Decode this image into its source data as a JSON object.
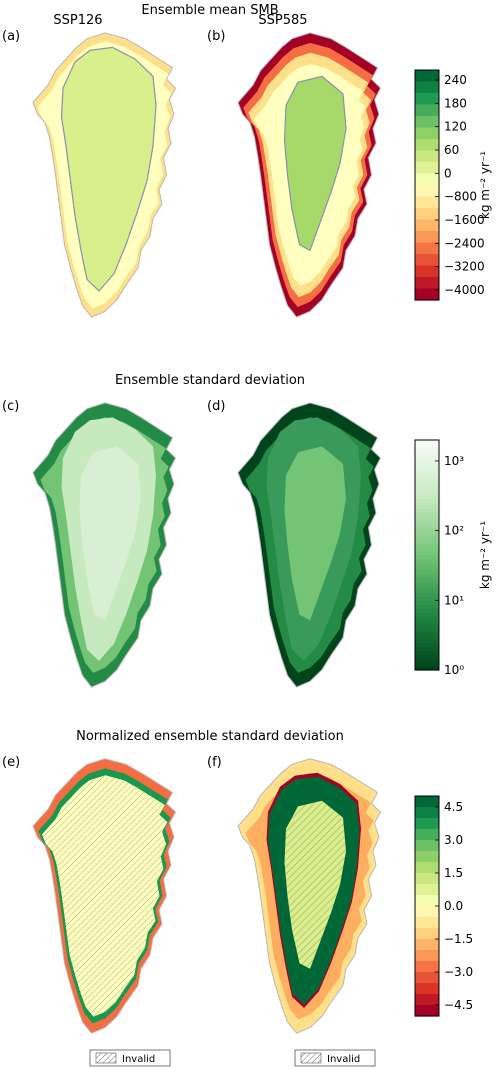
{
  "chart_data": [
    {
      "type": "heatmap",
      "title": "Ensemble mean SMB",
      "panels": [
        {
          "label": "(a)",
          "scenario": "SSP126",
          "pattern": "mild"
        },
        {
          "label": "(b)",
          "scenario": "SSP585",
          "pattern": "strong"
        }
      ],
      "colorbar": {
        "label": "kg m⁻² yr⁻¹",
        "scale": "symmetric-split",
        "ticks": [
          240,
          180,
          120,
          60,
          0,
          -800,
          -1600,
          -2400,
          -3200,
          -4000
        ],
        "tick_labels": [
          "240",
          "180",
          "120",
          "60",
          "0",
          "−800",
          "−1600",
          "−2400",
          "−3200",
          "−4000"
        ],
        "levels": 20,
        "colors": [
          "#006837",
          "#1a9850",
          "#66bd63",
          "#a6d96a",
          "#d9ef8b",
          "#ffffbf",
          "#fee08b",
          "#fdae61",
          "#f46d43",
          "#d73027",
          "#a50026"
        ]
      }
    },
    {
      "type": "heatmap",
      "title": "Ensemble standard deviation",
      "panels": [
        {
          "label": "(c)",
          "pattern": "std-low"
        },
        {
          "label": "(d)",
          "pattern": "std-high"
        }
      ],
      "colorbar": {
        "label": "kg m⁻² yr⁻¹",
        "scale": "log",
        "range": [
          1,
          2000
        ],
        "tick_labels": [
          "10³",
          "10²",
          "10¹",
          "10⁰"
        ],
        "colors": [
          "#f7fcf5",
          "#c7e9c0",
          "#74c476",
          "#238b45",
          "#00441b"
        ]
      }
    },
    {
      "type": "heatmap",
      "title": "Normalized ensemble standard deviation",
      "panels": [
        {
          "label": "(e)",
          "pattern": "norm-ssp126",
          "legend": "Invalid"
        },
        {
          "label": "(f)",
          "pattern": "norm-ssp585",
          "legend": "Invalid"
        }
      ],
      "colorbar": {
        "scale": "linear",
        "range": [
          -5,
          5
        ],
        "ticks": [
          4.5,
          3.0,
          1.5,
          0.0,
          -1.5,
          -3.0,
          -4.5
        ],
        "tick_labels": [
          "4.5",
          "3.0",
          "1.5",
          "0.0",
          "−1.5",
          "−3.0",
          "−4.5"
        ],
        "levels": 20,
        "colors": [
          "#006837",
          "#1a9850",
          "#66bd63",
          "#a6d96a",
          "#d9ef8b",
          "#ffffbf",
          "#fee08b",
          "#fdae61",
          "#f46d43",
          "#d73027",
          "#a50026"
        ]
      }
    }
  ]
}
